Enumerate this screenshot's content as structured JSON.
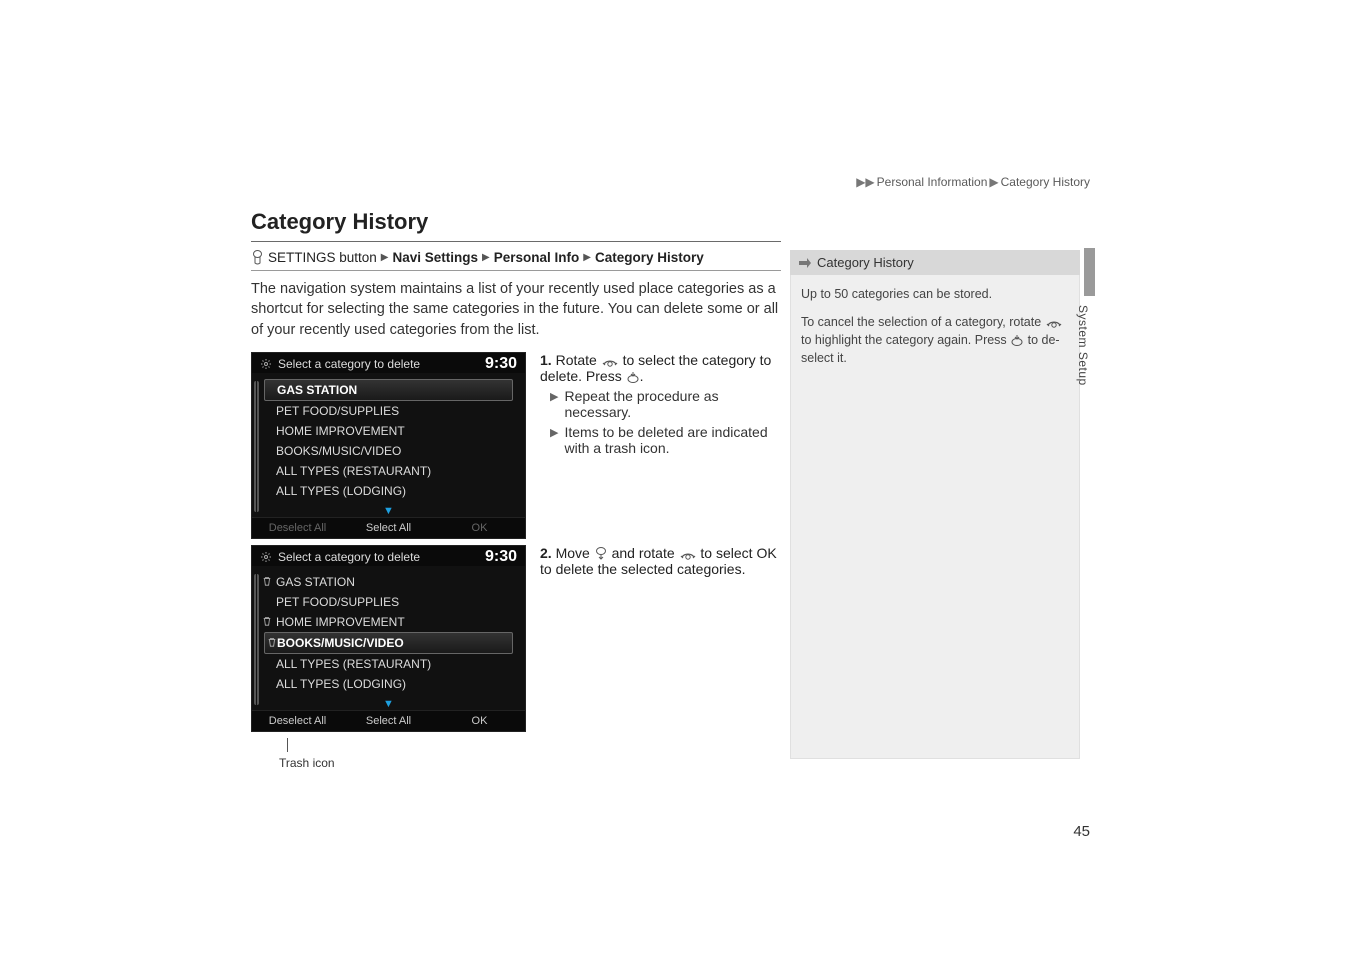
{
  "header_path": {
    "seg1": "Personal Information",
    "seg2": "Category History"
  },
  "title": "Category History",
  "breadcrumb": {
    "prefix": "SETTINGS button",
    "seg1": "Navi Settings",
    "seg2": "Personal Info",
    "seg3": "Category History"
  },
  "intro": "The navigation system maintains a list of your recently used place categories as a shortcut for selecting the same categories in the future. You can delete some or all of your recently used categories from the list.",
  "screenshot1": {
    "header": "Select a category to delete",
    "time": "9:30",
    "items": [
      "GAS STATION",
      "PET FOOD/SUPPLIES",
      "HOME IMPROVEMENT",
      "BOOKS/MUSIC/VIDEO",
      "ALL TYPES (RESTAURANT)",
      "ALL TYPES (LODGING)"
    ],
    "highlight_index": 0,
    "footer": {
      "left": "Deselect All",
      "mid": "Select All",
      "right": "OK",
      "left_dim": true,
      "right_dim": true
    }
  },
  "screenshot2": {
    "header": "Select a category to delete",
    "time": "9:30",
    "items": [
      "GAS STATION",
      "PET FOOD/SUPPLIES",
      "HOME IMPROVEMENT",
      "BOOKS/MUSIC/VIDEO",
      "ALL TYPES (RESTAURANT)",
      "ALL TYPES (LODGING)"
    ],
    "highlight_index": 3,
    "trash_indices": [
      0,
      2,
      3
    ],
    "footer": {
      "left": "Deselect All",
      "mid": "Select All",
      "right": "OK",
      "left_dim": false,
      "right_dim": false
    }
  },
  "trash_caption": "Trash icon",
  "step1": {
    "num": "1.",
    "text_a": "Rotate ",
    "text_b": " to select the category to delete. Press ",
    "text_c": ".",
    "sub1": "Repeat the procedure as necessary.",
    "sub2": "Items to be deleted are indicated with a trash icon."
  },
  "step2": {
    "num": "2.",
    "text_a": "Move ",
    "text_b": " and rotate ",
    "text_c": " to select ",
    "ok": "OK",
    "text_d": " to delete the selected categories."
  },
  "sidebar": {
    "head": "Category History",
    "p1": "Up to 50 categories can be stored.",
    "p2a": "To cancel the selection of a category, rotate ",
    "p2b": " to highlight the category again. Press ",
    "p2c": " to de-select it."
  },
  "vert_label": "System Setup",
  "pagenum": "45"
}
